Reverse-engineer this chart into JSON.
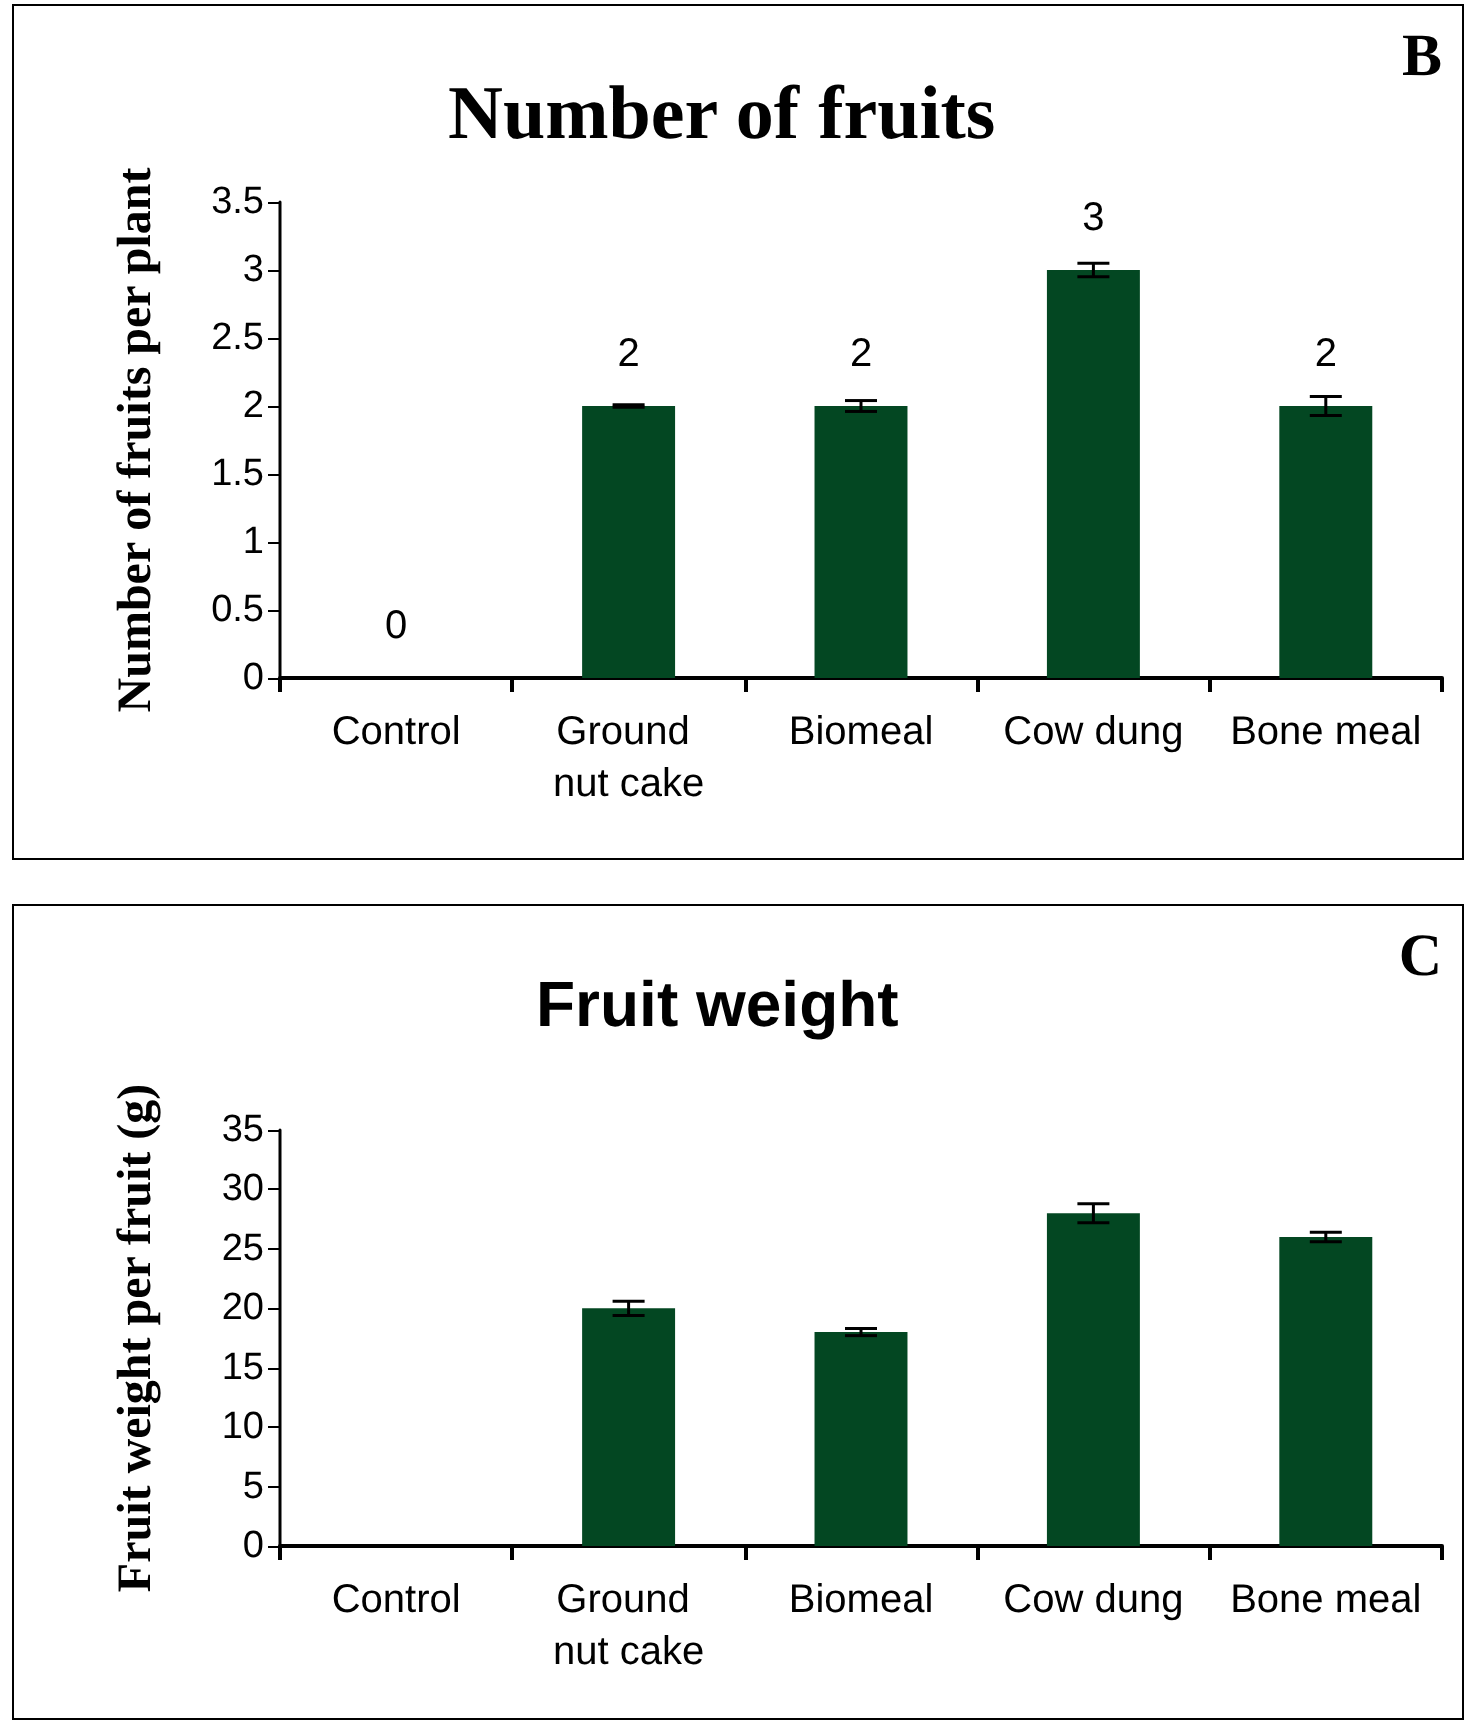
{
  "chart_data": [
    {
      "type": "bar",
      "title": "Number of fruits",
      "ylabel": "Number of fruits per plant",
      "annotations": [
        "B"
      ],
      "categories": [
        "Control",
        "Ground nut cake",
        "Biomeal",
        "Cow dung",
        "Bone meal"
      ],
      "values": [
        0,
        2,
        2,
        3,
        2
      ],
      "errors": [
        null,
        0.01,
        0.04,
        0.05,
        0.07
      ],
      "color": "#034722",
      "ylim": [
        0,
        3.5
      ],
      "yticks": [
        0,
        0.5,
        1,
        1.5,
        2,
        2.5,
        3,
        3.5
      ],
      "data_labels": true,
      "grid": false
    },
    {
      "type": "bar",
      "title": "Fruit weight",
      "ylabel": "Fruit weight per fruit (g)",
      "annotations": [
        "C"
      ],
      "categories": [
        "Control",
        "Ground nut cake",
        "Biomeal",
        "Cow dung",
        "Bone meal"
      ],
      "values": [
        0,
        20,
        18,
        28,
        26
      ],
      "errors": [
        null,
        0.6,
        0.3,
        0.8,
        0.4
      ],
      "color": "#034722",
      "ylim": [
        0,
        35
      ],
      "yticks": [
        0,
        5,
        10,
        15,
        20,
        25,
        30,
        35
      ],
      "grid": false
    }
  ]
}
